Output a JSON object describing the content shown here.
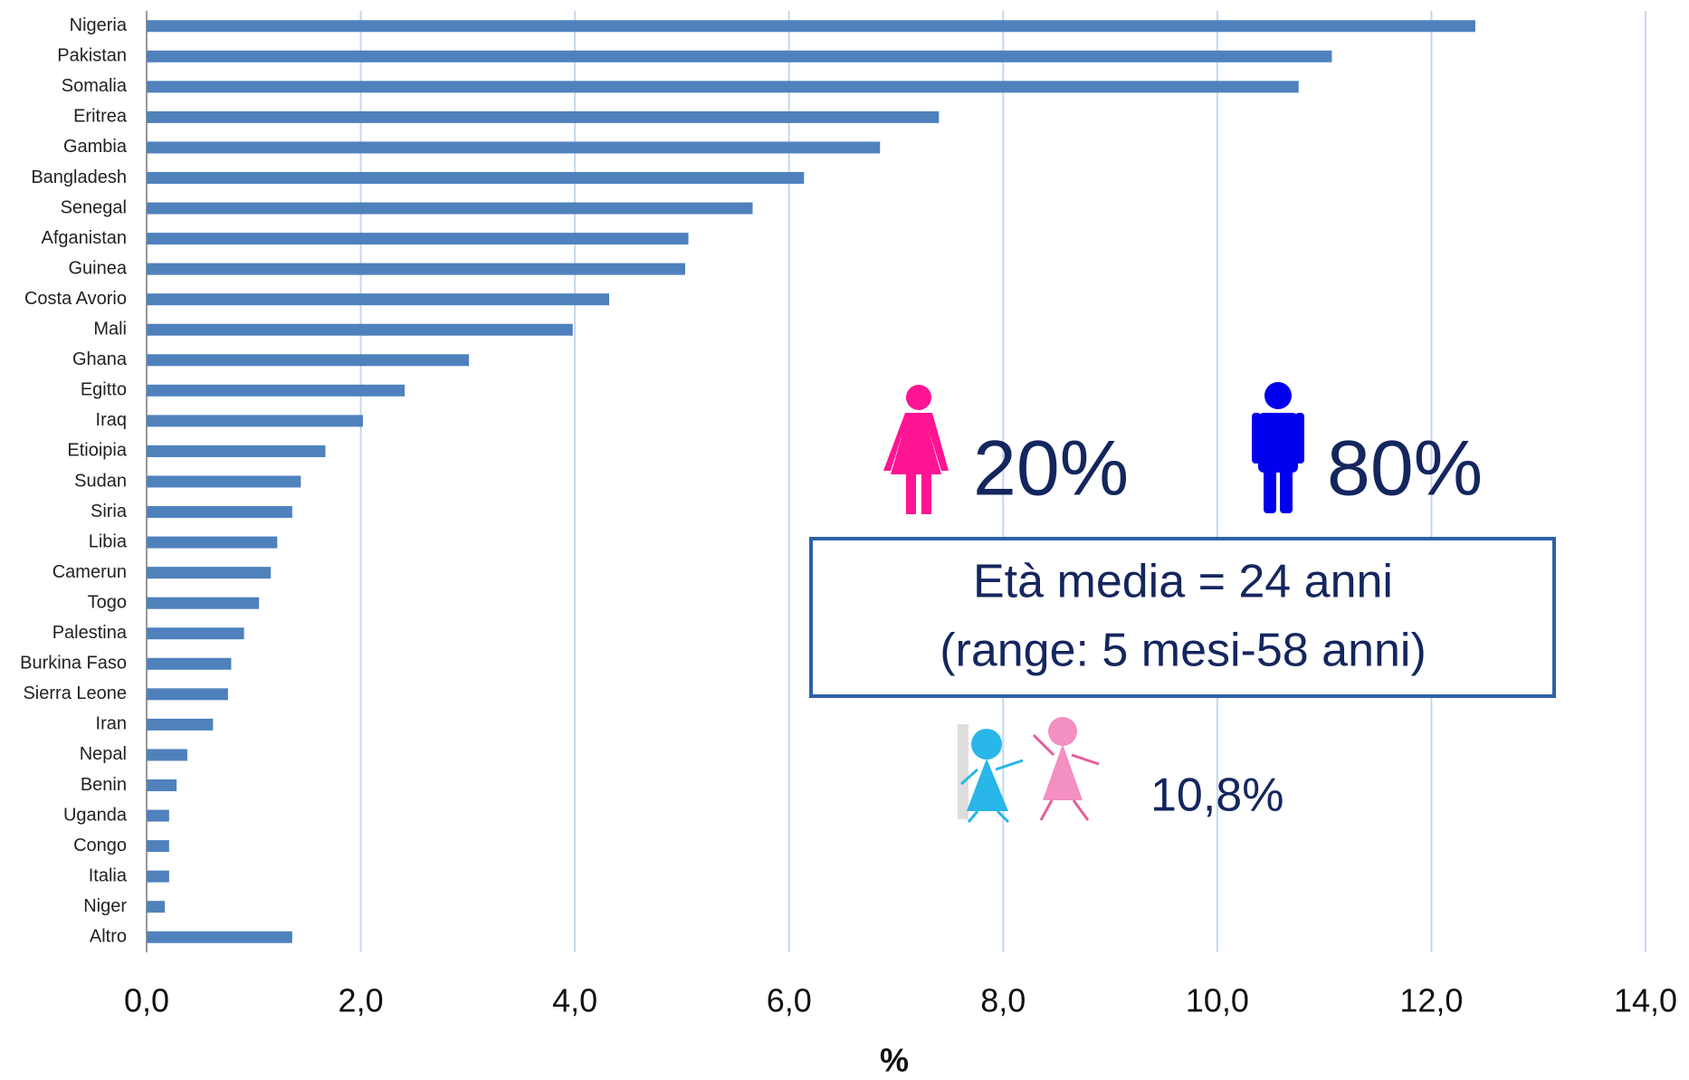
{
  "chart_data": {
    "type": "barh",
    "x_label": "%",
    "categories": [
      "Nigeria",
      "Pakistan",
      "Somalia",
      "Eritrea",
      "Gambia",
      "Bangladesh",
      "Senegal",
      "Afganistan",
      "Guinea",
      "Costa Avorio",
      "Mali",
      "Ghana",
      "Egitto",
      "Iraq",
      "Etioipia",
      "Sudan",
      "Siria",
      "Libia",
      "Camerun",
      "Togo",
      "Palestina",
      "Burkina Faso",
      "Sierra Leone",
      "Iran",
      "Nepal",
      "Benin",
      "Uganda",
      "Congo",
      "Italia",
      "Niger",
      "Altro"
    ],
    "values": [
      12.41,
      11.07,
      10.76,
      7.4,
      6.85,
      6.14,
      5.66,
      5.06,
      5.03,
      4.32,
      3.98,
      3.01,
      2.41,
      2.02,
      1.67,
      1.44,
      1.36,
      1.22,
      1.16,
      1.05,
      0.91,
      0.79,
      0.76,
      0.62,
      0.38,
      0.28,
      0.21,
      0.21,
      0.21,
      0.17,
      1.36
    ],
    "color": "#4f81bd",
    "xlim": [
      0,
      14
    ],
    "xticks": [
      {
        "value": 0,
        "label": "0,0"
      },
      {
        "value": 2,
        "label": "2,0"
      },
      {
        "value": 4,
        "label": "4,0"
      },
      {
        "value": 6,
        "label": "6,0"
      },
      {
        "value": 8,
        "label": "8,0"
      },
      {
        "value": 10,
        "label": "10,0"
      },
      {
        "value": 12,
        "label": "12,0"
      },
      {
        "value": 14,
        "label": "14,0"
      }
    ],
    "grid": true,
    "annotations": {
      "female": "20%",
      "male": "80%",
      "age_line1": "Età media = 24 anni",
      "age_line2": "(range: 5 mesi-58 anni)",
      "children": "10,8%"
    }
  }
}
